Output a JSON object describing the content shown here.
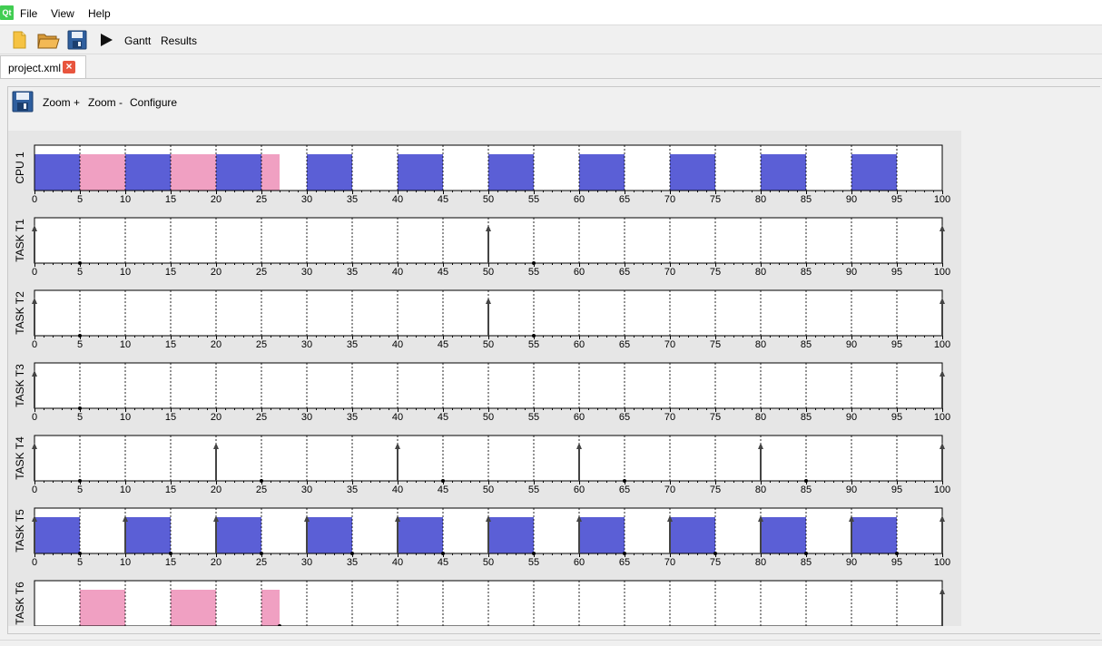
{
  "menubar": {
    "logo_text": "Qt",
    "items": [
      {
        "label": "File"
      },
      {
        "label": "View"
      },
      {
        "label": "Help"
      }
    ]
  },
  "toolbar": {
    "gantt_label": "Gantt",
    "results_label": "Results"
  },
  "tabs": [
    {
      "label": "project.xml",
      "close": "×"
    }
  ],
  "inner_toolbar": {
    "zoom_in_label": "Zoom +",
    "zoom_out_label": "Zoom -",
    "configure_label": "Configure"
  },
  "colors": {
    "cpu_task_a": "#5b5fd6",
    "cpu_task_b": "#f0a0c2",
    "panel_border": "#000000",
    "grid": "#000000"
  },
  "gantt": {
    "x_min": 0,
    "x_max": 100,
    "major_ticks": [
      0,
      5,
      10,
      15,
      20,
      25,
      30,
      35,
      40,
      45,
      50,
      55,
      60,
      65,
      70,
      75,
      80,
      85,
      90,
      95,
      100
    ],
    "rows": [
      {
        "label": "CPU 1",
        "segments": [
          {
            "start": 0,
            "end": 5,
            "color": "a"
          },
          {
            "start": 5,
            "end": 10,
            "color": "b"
          },
          {
            "start": 10,
            "end": 15,
            "color": "a"
          },
          {
            "start": 15,
            "end": 20,
            "color": "b"
          },
          {
            "start": 20,
            "end": 25,
            "color": "a"
          },
          {
            "start": 25,
            "end": 27,
            "color": "b"
          },
          {
            "start": 30,
            "end": 35,
            "color": "a"
          },
          {
            "start": 40,
            "end": 45,
            "color": "a"
          },
          {
            "start": 50,
            "end": 55,
            "color": "a"
          },
          {
            "start": 60,
            "end": 65,
            "color": "a"
          },
          {
            "start": 70,
            "end": 75,
            "color": "a"
          },
          {
            "start": 80,
            "end": 85,
            "color": "a"
          },
          {
            "start": 90,
            "end": 95,
            "color": "a"
          }
        ],
        "arrivals": [],
        "deadlines": []
      },
      {
        "label": "TASK T1",
        "segments": [],
        "arrivals": [
          0,
          50,
          100
        ],
        "deadlines": [
          5,
          55
        ]
      },
      {
        "label": "TASK T2",
        "segments": [],
        "arrivals": [
          0,
          50,
          100
        ],
        "deadlines": [
          5,
          55
        ]
      },
      {
        "label": "TASK T3",
        "segments": [],
        "arrivals": [
          0,
          100
        ],
        "deadlines": [
          5
        ]
      },
      {
        "label": "TASK T4",
        "segments": [],
        "arrivals": [
          0,
          20,
          40,
          60,
          80,
          100
        ],
        "deadlines": [
          5,
          25,
          45,
          65,
          85
        ]
      },
      {
        "label": "TASK T5",
        "segments": [
          {
            "start": 0,
            "end": 5,
            "color": "a"
          },
          {
            "start": 10,
            "end": 15,
            "color": "a"
          },
          {
            "start": 20,
            "end": 25,
            "color": "a"
          },
          {
            "start": 30,
            "end": 35,
            "color": "a"
          },
          {
            "start": 40,
            "end": 45,
            "color": "a"
          },
          {
            "start": 50,
            "end": 55,
            "color": "a"
          },
          {
            "start": 60,
            "end": 65,
            "color": "a"
          },
          {
            "start": 70,
            "end": 75,
            "color": "a"
          },
          {
            "start": 80,
            "end": 85,
            "color": "a"
          },
          {
            "start": 90,
            "end": 95,
            "color": "a"
          }
        ],
        "arrivals": [
          0,
          10,
          20,
          30,
          40,
          50,
          60,
          70,
          80,
          90,
          100
        ],
        "deadlines": [
          5,
          15,
          25,
          35,
          45,
          55,
          65,
          75,
          85,
          95
        ]
      },
      {
        "label": "TASK T6",
        "segments": [
          {
            "start": 5,
            "end": 10,
            "color": "b"
          },
          {
            "start": 15,
            "end": 20,
            "color": "b"
          },
          {
            "start": 25,
            "end": 27,
            "color": "b"
          }
        ],
        "arrivals": [
          100
        ],
        "deadlines": [
          27
        ]
      }
    ]
  }
}
